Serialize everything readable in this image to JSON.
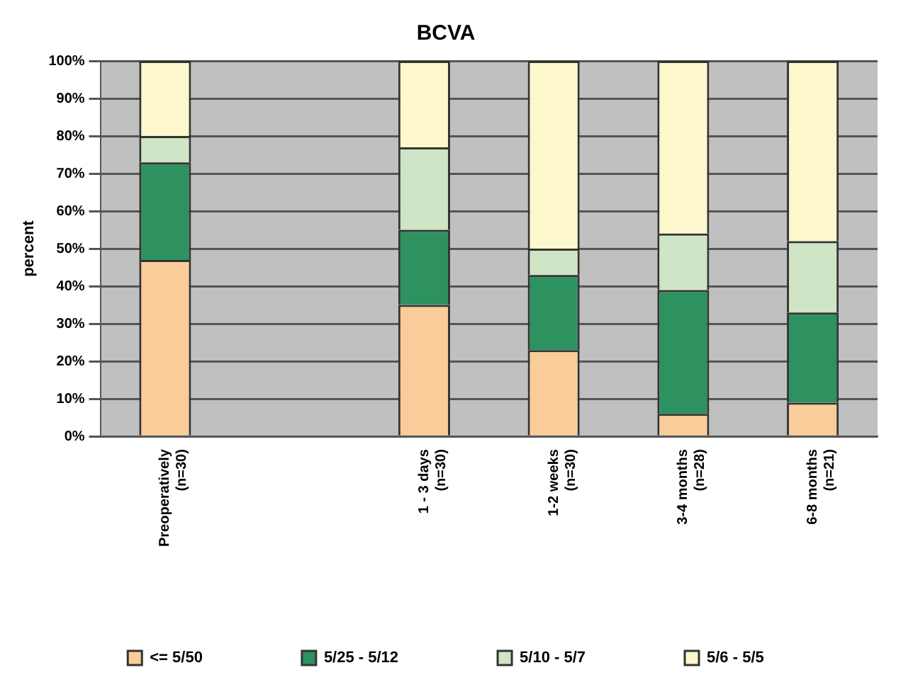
{
  "chart_data": {
    "type": "bar",
    "title": "BCVA",
    "ylabel": "percent",
    "stacked": true,
    "categories": [
      "Preoperatively (n=30)",
      null,
      "1 - 3 days (n=30)",
      "1-2 weeks (n=30)",
      "3-4 months (n=28)",
      "6-8 months (n=21)"
    ],
    "series": [
      {
        "name": "<= 5/50",
        "color": "#f9cc9a",
        "values": [
          47,
          null,
          35,
          23,
          6,
          9
        ]
      },
      {
        "name": "5/25 - 5/12",
        "color": "#2e9160",
        "values": [
          26,
          null,
          20,
          20,
          33,
          24
        ]
      },
      {
        "name": "5/10 - 5/7",
        "color": "#cfe5c6",
        "values": [
          7,
          null,
          22,
          7,
          15,
          19
        ]
      },
      {
        "name": "5/6 - 5/5",
        "color": "#fdf8cc",
        "values": [
          20,
          null,
          23,
          50,
          46,
          48
        ]
      }
    ],
    "ylim": [
      0,
      100
    ],
    "yticks": [
      {
        "value": 0,
        "label": "0%"
      },
      {
        "value": 10,
        "label": "10%"
      },
      {
        "value": 20,
        "label": "20%"
      },
      {
        "value": 30,
        "label": "30%"
      },
      {
        "value": 40,
        "label": "40%"
      },
      {
        "value": 50,
        "label": "50%"
      },
      {
        "value": 60,
        "label": "60%"
      },
      {
        "value": 70,
        "label": "70%"
      },
      {
        "value": 80,
        "label": "80%"
      },
      {
        "value": 90,
        "label": "90%"
      },
      {
        "value": 100,
        "label": "100%"
      }
    ],
    "grid": "y",
    "legend": "bottom"
  }
}
